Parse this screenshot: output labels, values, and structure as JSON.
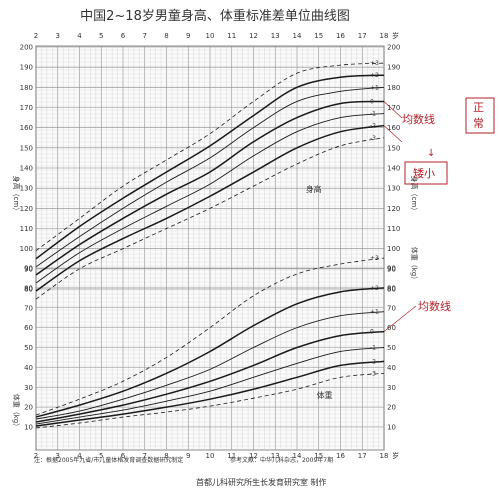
{
  "chart_data": {
    "type": "line",
    "title": "中国2~18岁男童身高、体重标准差单位曲线图",
    "x_label_unit": "岁",
    "x_ticks": [
      "2",
      "3",
      "4",
      "5",
      "6",
      "7",
      "8",
      "9",
      "10",
      "11",
      "12",
      "13",
      "14",
      "15",
      "16",
      "17",
      "18"
    ],
    "height_axis_label": "身高（cm）",
    "weight_axis_label": "体重（kg）",
    "height_ticks": [
      "80",
      "90",
      "100",
      "110",
      "120",
      "130",
      "140",
      "150",
      "160",
      "170",
      "180",
      "190",
      "200"
    ],
    "weight_ticks": [
      "10",
      "20",
      "30",
      "40",
      "50",
      "60",
      "70",
      "80",
      "90"
    ],
    "height_label": "身高",
    "weight_label": "体重",
    "sd_labels": [
      "+3",
      "+2",
      "+1",
      "0",
      "-1",
      "-2",
      "-3"
    ],
    "height_series": [
      {
        "name": "+3",
        "x": [
          2,
          4,
          6,
          8,
          10,
          12,
          14,
          16,
          18
        ],
        "y": [
          99,
          115,
          131,
          144,
          157,
          173,
          187,
          191,
          192
        ]
      },
      {
        "name": "+2",
        "x": [
          2,
          4,
          6,
          8,
          10,
          12,
          14,
          16,
          18
        ],
        "y": [
          95,
          111,
          125,
          138,
          151,
          166,
          180,
          185,
          186
        ]
      },
      {
        "name": "+1",
        "x": [
          2,
          4,
          6,
          8,
          10,
          12,
          14,
          16,
          18
        ],
        "y": [
          91,
          106,
          120,
          133,
          145,
          160,
          173,
          178,
          180
        ]
      },
      {
        "name": "0",
        "x": [
          2,
          4,
          6,
          8,
          10,
          12,
          14,
          16,
          18
        ],
        "y": [
          87,
          102,
          115,
          127,
          138,
          153,
          165,
          172,
          173
        ]
      },
      {
        "name": "-1",
        "x": [
          2,
          4,
          6,
          8,
          10,
          12,
          14,
          16,
          18
        ],
        "y": [
          83,
          98,
          110,
          121,
          132,
          146,
          158,
          165,
          167
        ]
      },
      {
        "name": "-2",
        "x": [
          2,
          4,
          6,
          8,
          10,
          12,
          14,
          16,
          18
        ],
        "y": [
          79,
          94,
          105,
          115,
          126,
          138,
          150,
          158,
          161
        ]
      },
      {
        "name": "-3",
        "x": [
          2,
          4,
          6,
          8,
          10,
          12,
          14,
          16,
          18
        ],
        "y": [
          75,
          90,
          100,
          110,
          120,
          131,
          142,
          151,
          155
        ]
      }
    ],
    "weight_series": [
      {
        "name": "+3",
        "x": [
          2,
          4,
          6,
          8,
          10,
          12,
          14,
          16,
          18
        ],
        "y": [
          16,
          24,
          33,
          45,
          60,
          76,
          87,
          92,
          95
        ]
      },
      {
        "name": "+2",
        "x": [
          2,
          4,
          6,
          8,
          10,
          12,
          14,
          16,
          18
        ],
        "y": [
          15,
          21,
          28,
          37,
          48,
          61,
          72,
          78,
          80
        ]
      },
      {
        "name": "+1",
        "x": [
          2,
          4,
          6,
          8,
          10,
          12,
          14,
          16,
          18
        ],
        "y": [
          14,
          18,
          24,
          31,
          39,
          50,
          60,
          66,
          68
        ]
      },
      {
        "name": "0",
        "x": [
          2,
          4,
          6,
          8,
          10,
          12,
          14,
          16,
          18
        ],
        "y": [
          12.5,
          16.5,
          21,
          26.5,
          33,
          41,
          50,
          56,
          58
        ]
      },
      {
        "name": "-1",
        "x": [
          2,
          4,
          6,
          8,
          10,
          12,
          14,
          16,
          18
        ],
        "y": [
          11.5,
          15,
          18.5,
          23,
          28,
          35,
          42,
          48,
          50
        ]
      },
      {
        "name": "-2",
        "x": [
          2,
          4,
          6,
          8,
          10,
          12,
          14,
          16,
          18
        ],
        "y": [
          10.5,
          13.5,
          16.5,
          20,
          24,
          29,
          35,
          41,
          43
        ]
      },
      {
        "name": "-3",
        "x": [
          2,
          4,
          6,
          8,
          10,
          12,
          14,
          16,
          18
        ],
        "y": [
          9.5,
          12,
          15,
          17.5,
          20.5,
          24.5,
          29,
          35,
          37
        ]
      }
    ]
  },
  "annotations": {
    "mean_label_top": "均数线",
    "normal_label": "正常",
    "short_label": "矮小",
    "mean_label_bottom": "均数线"
  },
  "footer": {
    "source_note": "注：根据2005年九省/市儿童体格发育调查数据研究制定",
    "reference_note": "参考文献：中华儿科杂志，2009年7期",
    "author": "首都儿科研究所生长发育研究室 制作"
  },
  "colors": {
    "annotation": "#b2222a",
    "grid": "#b9b9b9",
    "curve": "#1a1a1a"
  }
}
